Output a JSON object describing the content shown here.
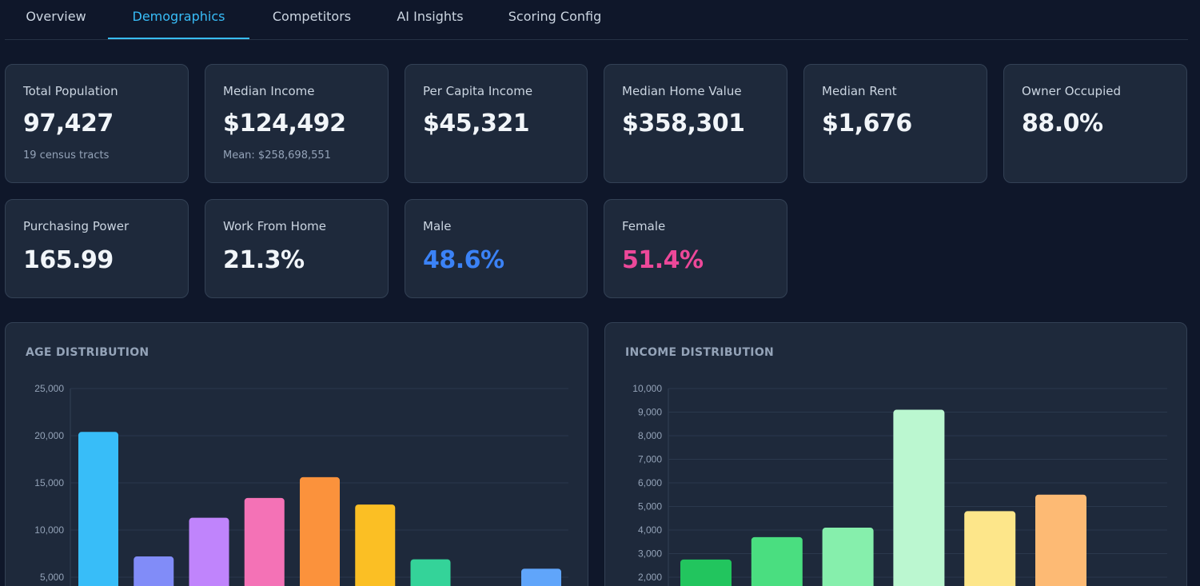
{
  "tabs": [
    {
      "label": "Overview",
      "active": false
    },
    {
      "label": "Demographics",
      "active": true
    },
    {
      "label": "Competitors",
      "active": false
    },
    {
      "label": "AI Insights",
      "active": false
    },
    {
      "label": "Scoring Config",
      "active": false
    }
  ],
  "metrics": [
    {
      "label": "Total Population",
      "value": "97,427",
      "sub": "19 census tracts"
    },
    {
      "label": "Median Income",
      "value": "$124,492",
      "sub": "Mean: $258,698,551"
    },
    {
      "label": "Per Capita Income",
      "value": "$45,321",
      "sub": ""
    },
    {
      "label": "Median Home Value",
      "value": "$358,301",
      "sub": ""
    },
    {
      "label": "Median Rent",
      "value": "$1,676",
      "sub": ""
    },
    {
      "label": "Owner Occupied",
      "value": "88.0%",
      "sub": ""
    },
    {
      "label": "Purchasing Power",
      "value": "165.99",
      "sub": ""
    },
    {
      "label": "Work From Home",
      "value": "21.3%",
      "sub": ""
    },
    {
      "label": "Male",
      "value": "48.6%",
      "sub": "",
      "color": "#3b82f6"
    },
    {
      "label": "Female",
      "value": "51.4%",
      "sub": "",
      "color": "#ec4899"
    }
  ],
  "chart_data": [
    {
      "type": "bar",
      "title": "AGE DISTRIBUTION",
      "ylim": [
        0,
        25000
      ],
      "yticks": [
        "25,000",
        "20,000",
        "15,000",
        "10,000",
        "5,000"
      ],
      "values": [
        20400,
        7200,
        11300,
        13400,
        15600,
        12700,
        6900,
        0,
        5900
      ],
      "colors": [
        "#38bdf8",
        "#818cf8",
        "#c084fc",
        "#f472b6",
        "#fb923c",
        "#fbbf24",
        "#34d399",
        "#94a3b8",
        "#60a5fa"
      ],
      "grid": true
    },
    {
      "type": "bar",
      "title": "INCOME DISTRIBUTION",
      "ylim": [
        0,
        10000
      ],
      "yticks": [
        "10,000",
        "9,000",
        "8,000",
        "7,000",
        "6,000",
        "5,000",
        "4,000",
        "3,000",
        "2,000"
      ],
      "values": [
        2750,
        3700,
        4100,
        9100,
        4800,
        5500
      ],
      "colors": [
        "#22c55e",
        "#4ade80",
        "#86efac",
        "#bbf7d0",
        "#fde68a",
        "#fdba74"
      ],
      "grid": true
    }
  ]
}
